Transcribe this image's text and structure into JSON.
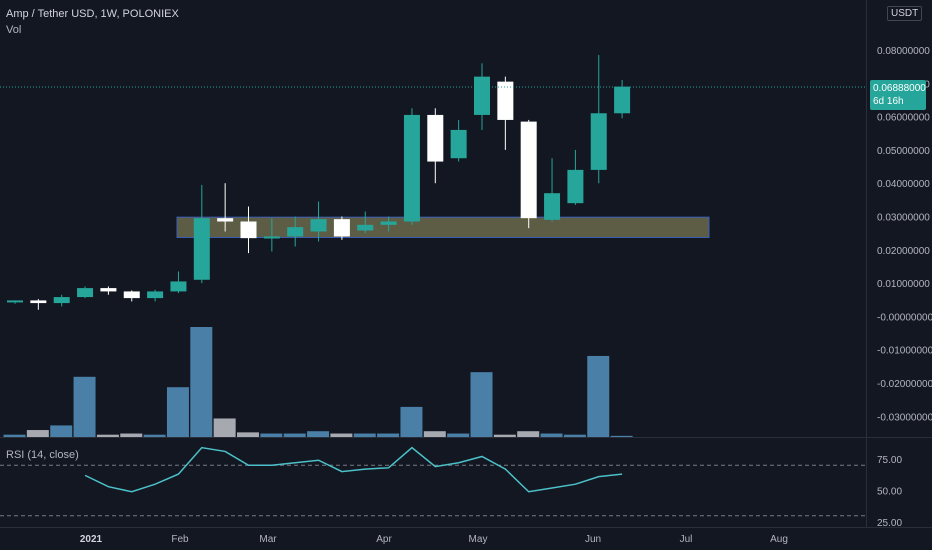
{
  "header": {
    "symbol_title": "Amp / Tether USD, 1W, POLONIEX",
    "volume_label": "Vol",
    "rsi_label": "RSI (14, close)",
    "currency": "USDT"
  },
  "price_tag": {
    "price": "0.06888000",
    "countdown": "6d 16h",
    "color": "#26a69a"
  },
  "colors": {
    "background": "#131722",
    "up": "#26a69a",
    "down": "#ffffff",
    "vol_strong": "#4a7fa8",
    "vol_weak": "#a7a9b0",
    "rsi_line": "#4cc1c9",
    "zone_fill": "#6b6a4c",
    "zone_border": "#3b5fb5"
  },
  "chart_data": [
    {
      "type": "candlestick",
      "title": "Amp / Tether USD, 1W, POLONIEX",
      "y_axis_ticks": [
        "0.08000000",
        "0.07000000",
        "0.06000000",
        "0.05000000",
        "0.04000000",
        "0.03000000",
        "0.02000000",
        "0.01000000",
        "-0.00000000",
        "-0.01000000",
        "-0.02000000",
        "-0.03000000"
      ],
      "x_axis_ticks": [
        "2021",
        "Feb",
        "Mar",
        "Apr",
        "May",
        "Jun",
        "Jul",
        "Aug"
      ],
      "ylim": [
        -0.035,
        0.088
      ],
      "last_price": 0.06888,
      "zone": {
        "low": 0.0237,
        "high": 0.0298
      },
      "candles": [
        {
          "o": 0.0042,
          "h": 0.0048,
          "l": 0.0038,
          "c": 0.0048
        },
        {
          "o": 0.0048,
          "h": 0.0052,
          "l": 0.002,
          "c": 0.004
        },
        {
          "o": 0.004,
          "h": 0.0065,
          "l": 0.003,
          "c": 0.0058
        },
        {
          "o": 0.0058,
          "h": 0.009,
          "l": 0.0055,
          "c": 0.0085
        },
        {
          "o": 0.0085,
          "h": 0.009,
          "l": 0.0065,
          "c": 0.0075
        },
        {
          "o": 0.0075,
          "h": 0.0078,
          "l": 0.0045,
          "c": 0.0055
        },
        {
          "o": 0.0055,
          "h": 0.008,
          "l": 0.0045,
          "c": 0.0075
        },
        {
          "o": 0.0075,
          "h": 0.0135,
          "l": 0.007,
          "c": 0.0105
        },
        {
          "o": 0.011,
          "h": 0.0395,
          "l": 0.01,
          "c": 0.0295
        },
        {
          "o": 0.0295,
          "h": 0.04,
          "l": 0.0255,
          "c": 0.0285
        },
        {
          "o": 0.0285,
          "h": 0.033,
          "l": 0.019,
          "c": 0.0235
        },
        {
          "o": 0.0235,
          "h": 0.0295,
          "l": 0.0195,
          "c": 0.024
        },
        {
          "o": 0.024,
          "h": 0.03,
          "l": 0.021,
          "c": 0.0268
        },
        {
          "o": 0.0255,
          "h": 0.0345,
          "l": 0.0225,
          "c": 0.0292
        },
        {
          "o": 0.0292,
          "h": 0.03,
          "l": 0.023,
          "c": 0.024
        },
        {
          "o": 0.0258,
          "h": 0.0315,
          "l": 0.025,
          "c": 0.0275
        },
        {
          "o": 0.0275,
          "h": 0.03,
          "l": 0.0255,
          "c": 0.0285
        },
        {
          "o": 0.0285,
          "h": 0.0625,
          "l": 0.0275,
          "c": 0.0605
        },
        {
          "o": 0.0605,
          "h": 0.0625,
          "l": 0.04,
          "c": 0.0465
        },
        {
          "o": 0.0475,
          "h": 0.059,
          "l": 0.0465,
          "c": 0.056
        },
        {
          "o": 0.0605,
          "h": 0.076,
          "l": 0.056,
          "c": 0.072
        },
        {
          "o": 0.0705,
          "h": 0.072,
          "l": 0.05,
          "c": 0.059
        },
        {
          "o": 0.0585,
          "h": 0.059,
          "l": 0.0265,
          "c": 0.0295
        },
        {
          "o": 0.029,
          "h": 0.0475,
          "l": 0.0285,
          "c": 0.037
        },
        {
          "o": 0.034,
          "h": 0.05,
          "l": 0.0335,
          "c": 0.044
        },
        {
          "o": 0.044,
          "h": 0.0785,
          "l": 0.04,
          "c": 0.061
        },
        {
          "o": 0.061,
          "h": 0.071,
          "l": 0.0595,
          "c": 0.069
        }
      ]
    },
    {
      "type": "bar",
      "title": "Vol",
      "values": [
        2,
        6,
        10,
        52,
        2,
        3,
        2,
        43,
        95,
        16,
        4,
        3,
        3,
        5,
        3,
        3,
        3,
        26,
        5,
        3,
        56,
        2,
        5,
        3,
        2,
        70,
        1
      ],
      "strong": [
        true,
        false,
        true,
        true,
        false,
        false,
        true,
        true,
        true,
        false,
        false,
        true,
        true,
        true,
        false,
        true,
        true,
        true,
        false,
        true,
        true,
        false,
        false,
        true,
        true,
        true,
        true
      ]
    },
    {
      "type": "line",
      "title": "RSI (14, close)",
      "y_axis_ticks": [
        "75.00",
        "50.00",
        "25.00"
      ],
      "levels": [
        70,
        30
      ],
      "ylim": [
        25,
        90
      ],
      "values": [
        62,
        53,
        49,
        55,
        63,
        84,
        81,
        70,
        70,
        72,
        74,
        65,
        67,
        68,
        84,
        69,
        72,
        77,
        67,
        49,
        52,
        55,
        61,
        63
      ]
    }
  ]
}
